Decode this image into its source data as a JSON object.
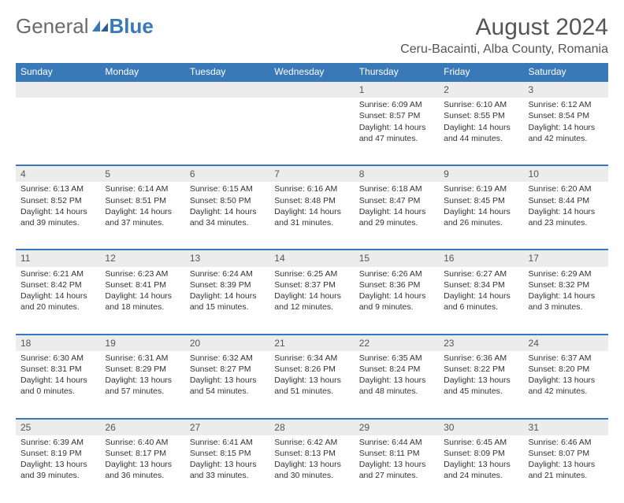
{
  "brand": {
    "part1": "General",
    "part2": "Blue"
  },
  "title": "August 2024",
  "location": "Ceru-Bacainti, Alba County, Romania",
  "colors": {
    "header_bg": "#3a79b7",
    "header_text": "#ffffff",
    "daynum_bg": "#ececec",
    "border_top": "#3a79b7",
    "body_text": "#333333",
    "title_text": "#555555"
  },
  "day_headers": [
    "Sunday",
    "Monday",
    "Tuesday",
    "Wednesday",
    "Thursday",
    "Friday",
    "Saturday"
  ],
  "weeks": [
    {
      "nums": [
        "",
        "",
        "",
        "",
        "1",
        "2",
        "3"
      ],
      "cells": [
        null,
        null,
        null,
        null,
        {
          "sunrise": "Sunrise: 6:09 AM",
          "sunset": "Sunset: 8:57 PM",
          "day1": "Daylight: 14 hours",
          "day2": "and 47 minutes."
        },
        {
          "sunrise": "Sunrise: 6:10 AM",
          "sunset": "Sunset: 8:55 PM",
          "day1": "Daylight: 14 hours",
          "day2": "and 44 minutes."
        },
        {
          "sunrise": "Sunrise: 6:12 AM",
          "sunset": "Sunset: 8:54 PM",
          "day1": "Daylight: 14 hours",
          "day2": "and 42 minutes."
        }
      ]
    },
    {
      "nums": [
        "4",
        "5",
        "6",
        "7",
        "8",
        "9",
        "10"
      ],
      "cells": [
        {
          "sunrise": "Sunrise: 6:13 AM",
          "sunset": "Sunset: 8:52 PM",
          "day1": "Daylight: 14 hours",
          "day2": "and 39 minutes."
        },
        {
          "sunrise": "Sunrise: 6:14 AM",
          "sunset": "Sunset: 8:51 PM",
          "day1": "Daylight: 14 hours",
          "day2": "and 37 minutes."
        },
        {
          "sunrise": "Sunrise: 6:15 AM",
          "sunset": "Sunset: 8:50 PM",
          "day1": "Daylight: 14 hours",
          "day2": "and 34 minutes."
        },
        {
          "sunrise": "Sunrise: 6:16 AM",
          "sunset": "Sunset: 8:48 PM",
          "day1": "Daylight: 14 hours",
          "day2": "and 31 minutes."
        },
        {
          "sunrise": "Sunrise: 6:18 AM",
          "sunset": "Sunset: 8:47 PM",
          "day1": "Daylight: 14 hours",
          "day2": "and 29 minutes."
        },
        {
          "sunrise": "Sunrise: 6:19 AM",
          "sunset": "Sunset: 8:45 PM",
          "day1": "Daylight: 14 hours",
          "day2": "and 26 minutes."
        },
        {
          "sunrise": "Sunrise: 6:20 AM",
          "sunset": "Sunset: 8:44 PM",
          "day1": "Daylight: 14 hours",
          "day2": "and 23 minutes."
        }
      ]
    },
    {
      "nums": [
        "11",
        "12",
        "13",
        "14",
        "15",
        "16",
        "17"
      ],
      "cells": [
        {
          "sunrise": "Sunrise: 6:21 AM",
          "sunset": "Sunset: 8:42 PM",
          "day1": "Daylight: 14 hours",
          "day2": "and 20 minutes."
        },
        {
          "sunrise": "Sunrise: 6:23 AM",
          "sunset": "Sunset: 8:41 PM",
          "day1": "Daylight: 14 hours",
          "day2": "and 18 minutes."
        },
        {
          "sunrise": "Sunrise: 6:24 AM",
          "sunset": "Sunset: 8:39 PM",
          "day1": "Daylight: 14 hours",
          "day2": "and 15 minutes."
        },
        {
          "sunrise": "Sunrise: 6:25 AM",
          "sunset": "Sunset: 8:37 PM",
          "day1": "Daylight: 14 hours",
          "day2": "and 12 minutes."
        },
        {
          "sunrise": "Sunrise: 6:26 AM",
          "sunset": "Sunset: 8:36 PM",
          "day1": "Daylight: 14 hours",
          "day2": "and 9 minutes."
        },
        {
          "sunrise": "Sunrise: 6:27 AM",
          "sunset": "Sunset: 8:34 PM",
          "day1": "Daylight: 14 hours",
          "day2": "and 6 minutes."
        },
        {
          "sunrise": "Sunrise: 6:29 AM",
          "sunset": "Sunset: 8:32 PM",
          "day1": "Daylight: 14 hours",
          "day2": "and 3 minutes."
        }
      ]
    },
    {
      "nums": [
        "18",
        "19",
        "20",
        "21",
        "22",
        "23",
        "24"
      ],
      "cells": [
        {
          "sunrise": "Sunrise: 6:30 AM",
          "sunset": "Sunset: 8:31 PM",
          "day1": "Daylight: 14 hours",
          "day2": "and 0 minutes."
        },
        {
          "sunrise": "Sunrise: 6:31 AM",
          "sunset": "Sunset: 8:29 PM",
          "day1": "Daylight: 13 hours",
          "day2": "and 57 minutes."
        },
        {
          "sunrise": "Sunrise: 6:32 AM",
          "sunset": "Sunset: 8:27 PM",
          "day1": "Daylight: 13 hours",
          "day2": "and 54 minutes."
        },
        {
          "sunrise": "Sunrise: 6:34 AM",
          "sunset": "Sunset: 8:26 PM",
          "day1": "Daylight: 13 hours",
          "day2": "and 51 minutes."
        },
        {
          "sunrise": "Sunrise: 6:35 AM",
          "sunset": "Sunset: 8:24 PM",
          "day1": "Daylight: 13 hours",
          "day2": "and 48 minutes."
        },
        {
          "sunrise": "Sunrise: 6:36 AM",
          "sunset": "Sunset: 8:22 PM",
          "day1": "Daylight: 13 hours",
          "day2": "and 45 minutes."
        },
        {
          "sunrise": "Sunrise: 6:37 AM",
          "sunset": "Sunset: 8:20 PM",
          "day1": "Daylight: 13 hours",
          "day2": "and 42 minutes."
        }
      ]
    },
    {
      "nums": [
        "25",
        "26",
        "27",
        "28",
        "29",
        "30",
        "31"
      ],
      "cells": [
        {
          "sunrise": "Sunrise: 6:39 AM",
          "sunset": "Sunset: 8:19 PM",
          "day1": "Daylight: 13 hours",
          "day2": "and 39 minutes."
        },
        {
          "sunrise": "Sunrise: 6:40 AM",
          "sunset": "Sunset: 8:17 PM",
          "day1": "Daylight: 13 hours",
          "day2": "and 36 minutes."
        },
        {
          "sunrise": "Sunrise: 6:41 AM",
          "sunset": "Sunset: 8:15 PM",
          "day1": "Daylight: 13 hours",
          "day2": "and 33 minutes."
        },
        {
          "sunrise": "Sunrise: 6:42 AM",
          "sunset": "Sunset: 8:13 PM",
          "day1": "Daylight: 13 hours",
          "day2": "and 30 minutes."
        },
        {
          "sunrise": "Sunrise: 6:44 AM",
          "sunset": "Sunset: 8:11 PM",
          "day1": "Daylight: 13 hours",
          "day2": "and 27 minutes."
        },
        {
          "sunrise": "Sunrise: 6:45 AM",
          "sunset": "Sunset: 8:09 PM",
          "day1": "Daylight: 13 hours",
          "day2": "and 24 minutes."
        },
        {
          "sunrise": "Sunrise: 6:46 AM",
          "sunset": "Sunset: 8:07 PM",
          "day1": "Daylight: 13 hours",
          "day2": "and 21 minutes."
        }
      ]
    }
  ]
}
